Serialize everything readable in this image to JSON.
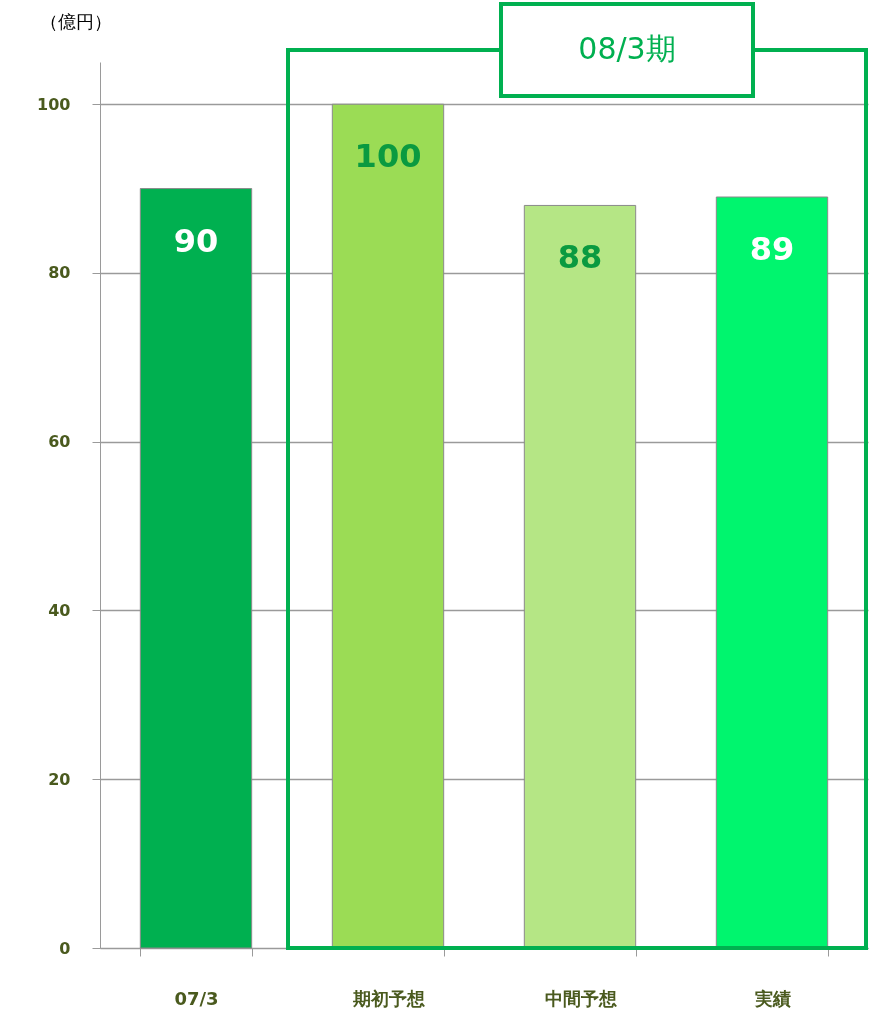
{
  "chart_data": {
    "type": "bar",
    "ylabel": "（億円）",
    "categories": [
      "07/3",
      "期初予想",
      "中間予想",
      "実績"
    ],
    "values": [
      90,
      100,
      88,
      89
    ],
    "colors": [
      "#00b050",
      "#9bdc55",
      "#b5e685",
      "#00f56e"
    ],
    "ylim": [
      0,
      105
    ],
    "yticks": [
      0,
      20,
      40,
      60,
      80,
      100
    ],
    "grid": "y",
    "data_labels": true,
    "annotations": [
      "08/3期"
    ]
  }
}
